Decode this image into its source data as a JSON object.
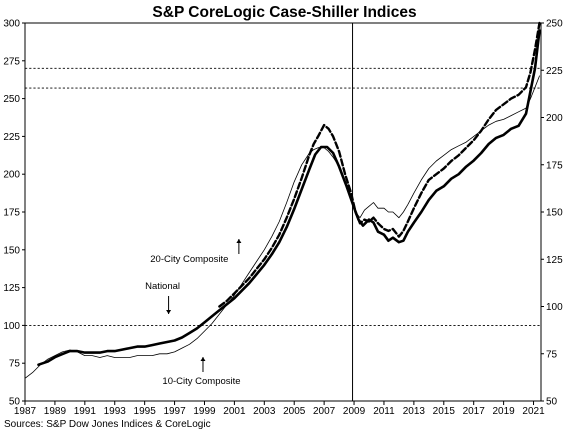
{
  "chart_data": {
    "type": "line",
    "title": "S&P CoreLogic Case-Shiller Indices",
    "source": "Sources:  S&P Dow Jones Indices & CoreLogic",
    "xlim": [
      1987,
      2021.5
    ],
    "x_ticks": [
      1987,
      1989,
      1991,
      1993,
      1995,
      1997,
      1999,
      2001,
      2003,
      2005,
      2007,
      2009,
      2011,
      2013,
      2015,
      2017,
      2019,
      2021
    ],
    "y_left": {
      "range": [
        50,
        300
      ],
      "ticks": [
        50,
        75,
        100,
        125,
        150,
        175,
        200,
        225,
        250,
        275,
        300
      ]
    },
    "y_right": {
      "range": [
        50,
        250
      ],
      "ticks": [
        50,
        75,
        100,
        125,
        150,
        175,
        200,
        225,
        250
      ]
    },
    "reference_lines_left": [
      100,
      257,
      270
    ],
    "vertical_line_x": 2008.9,
    "annotations": [
      {
        "text": "20-City Composite",
        "x": 2001.1,
        "y": 126,
        "series": "20-City Composite"
      },
      {
        "text": "National",
        "x": 1996.2,
        "y": 92,
        "series": "National"
      },
      {
        "text": "10-City Composite",
        "x": 1998.6,
        "y": 81,
        "series": "10-City Composite"
      }
    ],
    "series": [
      {
        "name": "National",
        "style": "thick-solid",
        "axis": "left",
        "x": [
          1987.9,
          1988.5,
          1989.0,
          1989.5,
          1990.0,
          1990.5,
          1991.0,
          1991.5,
          1992.0,
          1992.5,
          1993.0,
          1993.5,
          1994.0,
          1994.5,
          1995.0,
          1995.5,
          1996.0,
          1996.5,
          1997.0,
          1997.5,
          1998.0,
          1998.5,
          1999.0,
          1999.5,
          2000.0,
          2000.5,
          2001.0,
          2001.5,
          2002.0,
          2002.5,
          2003.0,
          2003.5,
          2004.0,
          2004.5,
          2005.0,
          2005.5,
          2006.0,
          2006.4,
          2006.8,
          2007.2,
          2007.6,
          2008.0,
          2008.5,
          2009.0,
          2009.3,
          2009.6,
          2010.0,
          2010.3,
          2010.6,
          2011.0,
          2011.3,
          2011.6,
          2012.0,
          2012.3,
          2012.6,
          2013.0,
          2013.5,
          2014.0,
          2014.5,
          2015.0,
          2015.5,
          2016.0,
          2016.5,
          2017.0,
          2017.5,
          2018.0,
          2018.5,
          2019.0,
          2019.5,
          2020.0,
          2020.5,
          2020.8,
          2021.1,
          2021.4
        ],
        "values": [
          74,
          76,
          79,
          81,
          83,
          83,
          82,
          82,
          82,
          83,
          83,
          84,
          85,
          86,
          86,
          87,
          88,
          89,
          90,
          92,
          95,
          98,
          102,
          106,
          110,
          114,
          118,
          123,
          128,
          134,
          140,
          147,
          155,
          165,
          177,
          190,
          203,
          213,
          218,
          218,
          214,
          205,
          192,
          178,
          170,
          166,
          170,
          168,
          162,
          160,
          156,
          158,
          155,
          156,
          162,
          168,
          175,
          183,
          189,
          192,
          197,
          200,
          205,
          209,
          214,
          220,
          224,
          226,
          230,
          232,
          240,
          255,
          270,
          295
        ]
      },
      {
        "name": "20-City Composite",
        "style": "dashed",
        "axis": "right",
        "x": [
          2000.0,
          2000.5,
          2001.0,
          2001.5,
          2002.0,
          2002.5,
          2003.0,
          2003.5,
          2004.0,
          2004.5,
          2005.0,
          2005.5,
          2006.0,
          2006.3,
          2006.6,
          2007.0,
          2007.3,
          2007.6,
          2008.0,
          2008.4,
          2008.8,
          2009.1,
          2009.4,
          2009.7,
          2010.0,
          2010.3,
          2010.6,
          2011.0,
          2011.3,
          2011.6,
          2012.0,
          2012.3,
          2012.6,
          2013.0,
          2013.5,
          2014.0,
          2014.5,
          2015.0,
          2015.5,
          2016.0,
          2016.5,
          2017.0,
          2017.5,
          2018.0,
          2018.5,
          2019.0,
          2019.5,
          2020.0,
          2020.5,
          2020.8,
          2021.1,
          2021.4
        ],
        "values": [
          100,
          103,
          107,
          111,
          115,
          120,
          125,
          131,
          138,
          147,
          157,
          168,
          180,
          186,
          190,
          196,
          194,
          190,
          182,
          170,
          160,
          150,
          144,
          146,
          145,
          147,
          144,
          141,
          140,
          141,
          137,
          140,
          145,
          152,
          160,
          167,
          170,
          173,
          177,
          180,
          184,
          188,
          193,
          199,
          204,
          207,
          210,
          212,
          216,
          224,
          236,
          250
        ]
      },
      {
        "name": "10-City Composite",
        "style": "thin-solid",
        "axis": "right",
        "x": [
          1987.0,
          1987.5,
          1988.0,
          1988.5,
          1989.0,
          1989.5,
          1990.0,
          1990.5,
          1991.0,
          1991.5,
          1992.0,
          1992.5,
          1993.0,
          1993.5,
          1994.0,
          1994.5,
          1995.0,
          1995.5,
          1996.0,
          1996.5,
          1997.0,
          1997.5,
          1998.0,
          1998.5,
          1999.0,
          1999.5,
          2000.0,
          2000.5,
          2001.0,
          2001.5,
          2002.0,
          2002.5,
          2003.0,
          2003.5,
          2004.0,
          2004.5,
          2005.0,
          2005.5,
          2006.0,
          2006.3,
          2006.6,
          2007.0,
          2007.3,
          2007.6,
          2008.0,
          2008.4,
          2008.8,
          2009.1,
          2009.4,
          2009.7,
          2010.0,
          2010.3,
          2010.6,
          2011.0,
          2011.3,
          2011.6,
          2012.0,
          2012.3,
          2012.6,
          2013.0,
          2013.5,
          2014.0,
          2014.5,
          2015.0,
          2015.5,
          2016.0,
          2016.5,
          2017.0,
          2017.5,
          2018.0,
          2018.5,
          2019.0,
          2019.5,
          2020.0,
          2020.5,
          2020.8,
          2021.1,
          2021.4
        ],
        "values": [
          62,
          65,
          69,
          72,
          74,
          76,
          77,
          76,
          74,
          74,
          73,
          74,
          73,
          73,
          73,
          74,
          74,
          74,
          75,
          75,
          76,
          78,
          80,
          83,
          87,
          91,
          96,
          101,
          106,
          112,
          118,
          124,
          130,
          137,
          145,
          155,
          166,
          175,
          181,
          183,
          184,
          184,
          182,
          179,
          174,
          165,
          156,
          150,
          147,
          151,
          153,
          155,
          152,
          152,
          150,
          150,
          147,
          150,
          154,
          160,
          167,
          173,
          177,
          180,
          183,
          185,
          187,
          190,
          193,
          196,
          198,
          199,
          201,
          203,
          205,
          210,
          216,
          222
        ]
      }
    ]
  }
}
